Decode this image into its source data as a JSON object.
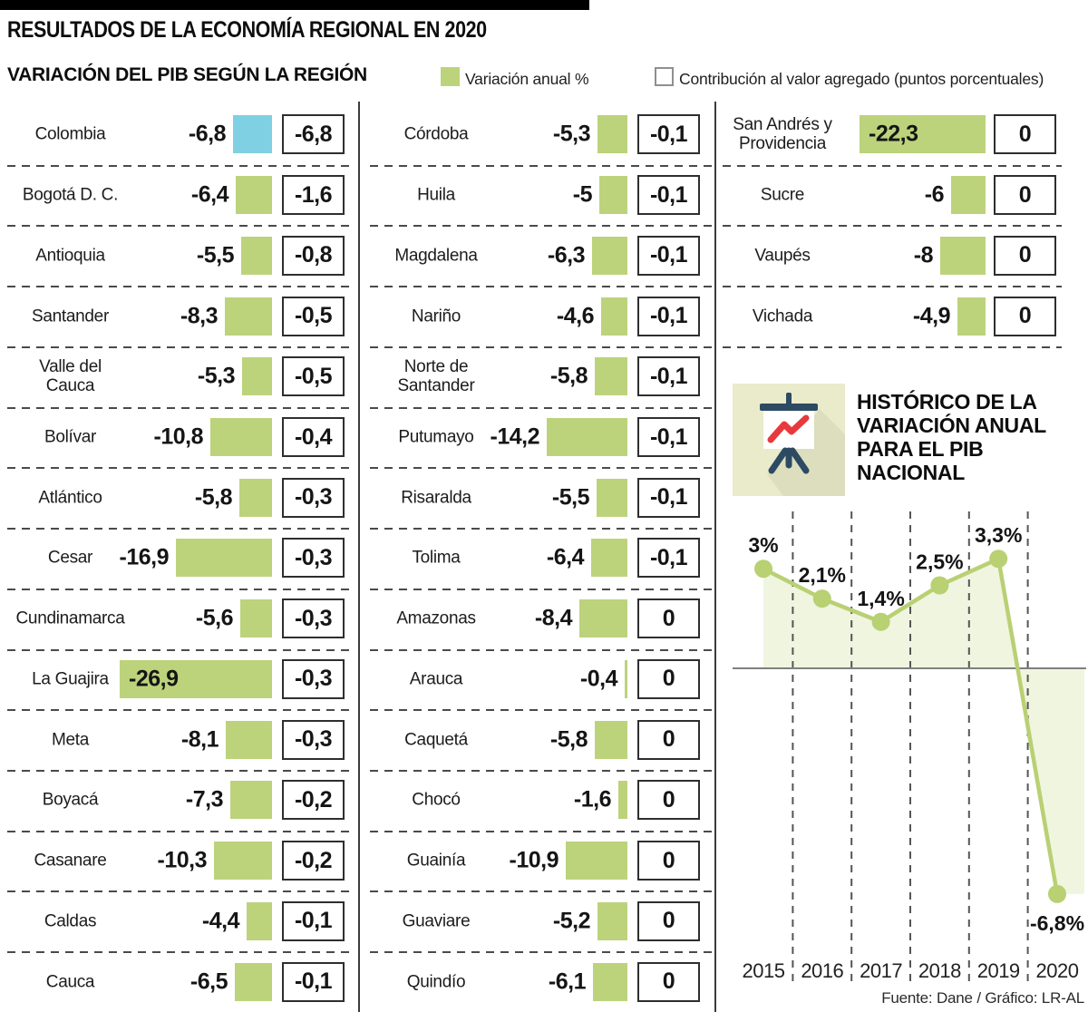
{
  "header": {
    "title": "RESULTADOS DE LA ECONOMÍA REGIONAL EN 2020",
    "subtitle": "VARIACIÓN DEL PIB SEGÚN LA REGIÓN",
    "legend_variation": "Variación anual %",
    "legend_contribution": "Contribución al valor agregado (puntos porcentuales)"
  },
  "colors": {
    "variation_bar": "#bcd37c",
    "colombia_bar": "#7fd0e2",
    "line": "#b9d073",
    "area_fill": "#b9d073",
    "tile_bg": "#e9ebca",
    "icon_navy": "#2d4a63",
    "icon_red": "#e8393d",
    "accent_bar": "#000000"
  },
  "history": {
    "title_lines": [
      "HISTÓRICO DE LA",
      "VARIACIÓN ANUAL",
      "PARA EL PIB",
      "NACIONAL"
    ]
  },
  "chart_data": [
    {
      "type": "bar",
      "title": "VARIACIÓN DEL PIB SEGÚN LA REGIÓN",
      "series_labels": [
        "Variación anual %",
        "Contribución al valor agregado (puntos porcentuales)"
      ],
      "unit": "%",
      "columns": [
        {
          "rows": [
            {
              "region": "Colombia",
              "variation": -6.8,
              "variation_label": "-6,8",
              "contribution_label": "-6,8",
              "highlight": true
            },
            {
              "region": "Bogotá D. C.",
              "variation": -6.4,
              "variation_label": "-6,4",
              "contribution_label": "-1,6"
            },
            {
              "region": "Antioquia",
              "variation": -5.5,
              "variation_label": "-5,5",
              "contribution_label": "-0,8"
            },
            {
              "region": "Santander",
              "variation": -8.3,
              "variation_label": "-8,3",
              "contribution_label": "-0,5"
            },
            {
              "region": "Valle del\nCauca",
              "variation": -5.3,
              "variation_label": "-5,3",
              "contribution_label": "-0,5"
            },
            {
              "region": "Bolívar",
              "variation": -10.8,
              "variation_label": "-10,8",
              "contribution_label": "-0,4"
            },
            {
              "region": "Atlántico",
              "variation": -5.8,
              "variation_label": "-5,8",
              "contribution_label": "-0,3"
            },
            {
              "region": "Cesar",
              "variation": -16.9,
              "variation_label": "-16,9",
              "contribution_label": "-0,3"
            },
            {
              "region": "Cundinamarca",
              "variation": -5.6,
              "variation_label": "-5,6",
              "contribution_label": "-0,3"
            },
            {
              "region": "La Guajira",
              "variation": -26.9,
              "variation_label": "-26,9",
              "contribution_label": "-0,3",
              "value_inside": true
            },
            {
              "region": "Meta",
              "variation": -8.1,
              "variation_label": "-8,1",
              "contribution_label": "-0,3"
            },
            {
              "region": "Boyacá",
              "variation": -7.3,
              "variation_label": "-7,3",
              "contribution_label": "-0,2"
            },
            {
              "region": "Casanare",
              "variation": -10.3,
              "variation_label": "-10,3",
              "contribution_label": "-0,2"
            },
            {
              "region": "Caldas",
              "variation": -4.4,
              "variation_label": "-4,4",
              "contribution_label": "-0,1"
            },
            {
              "region": "Cauca",
              "variation": -6.5,
              "variation_label": "-6,5",
              "contribution_label": "-0,1"
            }
          ]
        },
        {
          "rows": [
            {
              "region": "Córdoba",
              "variation": -5.3,
              "variation_label": "-5,3",
              "contribution_label": "-0,1"
            },
            {
              "region": "Huila",
              "variation": -5,
              "variation_label": "-5",
              "contribution_label": "-0,1"
            },
            {
              "region": "Magdalena",
              "variation": -6.3,
              "variation_label": "-6,3",
              "contribution_label": "-0,1"
            },
            {
              "region": "Nariño",
              "variation": -4.6,
              "variation_label": "-4,6",
              "contribution_label": "-0,1"
            },
            {
              "region": "Norte de\nSantander",
              "variation": -5.8,
              "variation_label": "-5,8",
              "contribution_label": "-0,1"
            },
            {
              "region": "Putumayo",
              "variation": -14.2,
              "variation_label": "-14,2",
              "contribution_label": "-0,1"
            },
            {
              "region": "Risaralda",
              "variation": -5.5,
              "variation_label": "-5,5",
              "contribution_label": "-0,1"
            },
            {
              "region": "Tolima",
              "variation": -6.4,
              "variation_label": "-6,4",
              "contribution_label": "-0,1"
            },
            {
              "region": "Amazonas",
              "variation": -8.4,
              "variation_label": "-8,4",
              "contribution_label": "0"
            },
            {
              "region": "Arauca",
              "variation": -0.4,
              "variation_label": "-0,4",
              "contribution_label": "0"
            },
            {
              "region": "Caquetá",
              "variation": -5.8,
              "variation_label": "-5,8",
              "contribution_label": "0"
            },
            {
              "region": "Chocó",
              "variation": -1.6,
              "variation_label": "-1,6",
              "contribution_label": "0"
            },
            {
              "region": "Guainía",
              "variation": -10.9,
              "variation_label": "-10,9",
              "contribution_label": "0"
            },
            {
              "region": "Guaviare",
              "variation": -5.2,
              "variation_label": "-5,2",
              "contribution_label": "0"
            },
            {
              "region": "Quindío",
              "variation": -6.1,
              "variation_label": "-6,1",
              "contribution_label": "0"
            }
          ]
        },
        {
          "rows": [
            {
              "region": "San Andrés y\nProvidencia",
              "variation": -22.3,
              "variation_label": "-22,3",
              "contribution_label": "0",
              "value_inside": true
            },
            {
              "region": "Sucre",
              "variation": -6,
              "variation_label": "-6",
              "contribution_label": "0"
            },
            {
              "region": "Vaupés",
              "variation": -8,
              "variation_label": "-8",
              "contribution_label": "0"
            },
            {
              "region": "Vichada",
              "variation": -4.9,
              "variation_label": "-4,9",
              "contribution_label": "0"
            }
          ]
        }
      ]
    },
    {
      "type": "line",
      "title": "HISTÓRICO DE LA VARIACIÓN ANUAL PARA EL PIB NACIONAL",
      "x": [
        "2015",
        "2016",
        "2017",
        "2018",
        "2019",
        "2020"
      ],
      "values": [
        3,
        2.1,
        1.4,
        2.5,
        3.3,
        -6.8
      ],
      "point_labels": [
        "3%",
        "2,1%",
        "1,4%",
        "2,5%",
        "3,3%",
        "-6,8%"
      ],
      "ylim": [
        -8,
        4.5
      ],
      "baseline": 0,
      "grid": "dashed vertical separators between years",
      "legend_position": "none"
    }
  ],
  "footer": {
    "source": "Fuente: Dane / Gráfico: LR-AL"
  }
}
